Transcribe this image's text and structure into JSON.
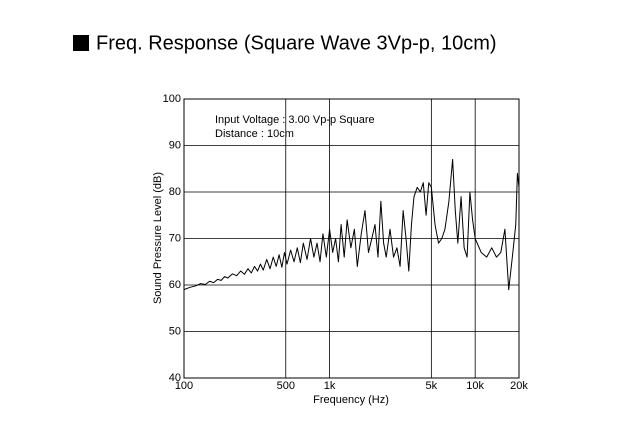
{
  "chart_data": {
    "type": "line",
    "title": "Freq. Response (Square Wave 3Vp-p, 10cm)",
    "annotations": [
      "Input Voltage : 3.00 Vp-p Square",
      "Distance : 10cm"
    ],
    "x_label": "Frequency (Hz)",
    "y_label": "Sound Pressure Level (dB)",
    "x_log": true,
    "grid": true,
    "xlim": [
      100,
      20000
    ],
    "xticks": [
      100,
      500,
      {
        "value": 1000,
        "label": "1k"
      },
      {
        "value": 5000,
        "label": "5k"
      },
      {
        "value": 10000,
        "label": "10k"
      },
      {
        "value": 20000,
        "label": "20k"
      }
    ],
    "ylim": [
      40,
      100
    ],
    "yticks": [
      40,
      50,
      60,
      70,
      80,
      90,
      100
    ],
    "series": [
      {
        "color": "#000000",
        "x": [
          100,
          110,
          120,
          130,
          140,
          150,
          160,
          170,
          180,
          190,
          200,
          215,
          230,
          245,
          260,
          275,
          290,
          305,
          320,
          335,
          350,
          370,
          390,
          410,
          430,
          450,
          470,
          490,
          510,
          540,
          570,
          600,
          630,
          660,
          700,
          740,
          780,
          820,
          860,
          900,
          950,
          1000,
          1050,
          1100,
          1150,
          1200,
          1260,
          1320,
          1400,
          1480,
          1550,
          1650,
          1750,
          1850,
          1950,
          2050,
          2150,
          2250,
          2350,
          2450,
          2600,
          2750,
          2900,
          3050,
          3200,
          3350,
          3500,
          3650,
          3800,
          4000,
          4200,
          4400,
          4600,
          4800,
          5000,
          5300,
          5600,
          5900,
          6200,
          6600,
          7000,
          7300,
          7600,
          8000,
          8400,
          8800,
          9200,
          9600,
          10000,
          11000,
          12000,
          13000,
          14000,
          15000,
          16000,
          17000,
          18000,
          19000,
          19500,
          20000
        ],
        "values": [
          59,
          59.5,
          59.8,
          60.3,
          60.1,
          60.8,
          60.5,
          61.2,
          61,
          61.8,
          61.5,
          62.4,
          62,
          63,
          62.3,
          63.5,
          62.6,
          64,
          63,
          64.5,
          63.2,
          65.5,
          63.5,
          66,
          64,
          66.5,
          63.8,
          67,
          64.5,
          67.5,
          65,
          68,
          64.8,
          69,
          65.5,
          70,
          66,
          69,
          65,
          71,
          66,
          72,
          67,
          70,
          65,
          73,
          66,
          74,
          68,
          72,
          64,
          71,
          76,
          67,
          70,
          73,
          66,
          78,
          69,
          66,
          72,
          66,
          68,
          64,
          76,
          70,
          63,
          73,
          79,
          81,
          80,
          82,
          75,
          82,
          81,
          73,
          69,
          70,
          72,
          78,
          87,
          76,
          69,
          79,
          68,
          66,
          80,
          74,
          70,
          67,
          66,
          68,
          66,
          67,
          72,
          59,
          66,
          73,
          84,
          81
        ]
      }
    ]
  }
}
